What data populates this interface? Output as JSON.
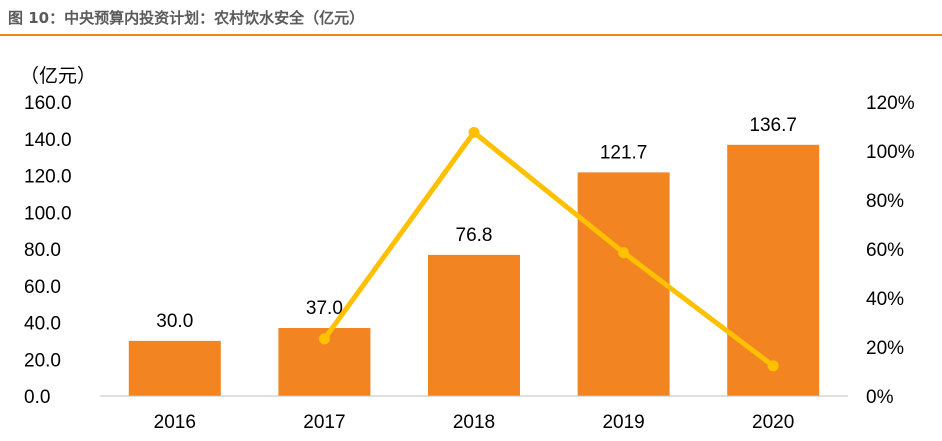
{
  "figure": {
    "title": "图 10：中央预算内投资计划：农村饮水安全（亿元）"
  },
  "chart_data": {
    "type": "bar",
    "categories": [
      "2016",
      "2017",
      "2018",
      "2019",
      "2020"
    ],
    "series": [
      {
        "values": [
          30.0,
          37.0,
          76.8,
          121.7,
          136.7
        ],
        "color": "#F28522",
        "axis": "left",
        "kind": "bar"
      },
      {
        "values": [
          null,
          23.3,
          107.6,
          58.5,
          12.3
        ],
        "color": "#FFC000",
        "axis": "right",
        "kind": "line",
        "unit": "%"
      }
    ],
    "data_labels": [
      "30.0",
      "37.0",
      "76.8",
      "121.7",
      "136.7"
    ],
    "ylabel": "（亿元）",
    "ylim": [
      0,
      160
    ],
    "yticks": [
      "0.0",
      "20.0",
      "40.0",
      "60.0",
      "80.0",
      "100.0",
      "120.0",
      "140.0",
      "160.0"
    ],
    "y2lim": [
      0,
      120
    ],
    "y2ticks": [
      "0%",
      "20%",
      "40%",
      "60%",
      "80%",
      "100%",
      "120%"
    ],
    "grid": false,
    "legend": "none"
  }
}
